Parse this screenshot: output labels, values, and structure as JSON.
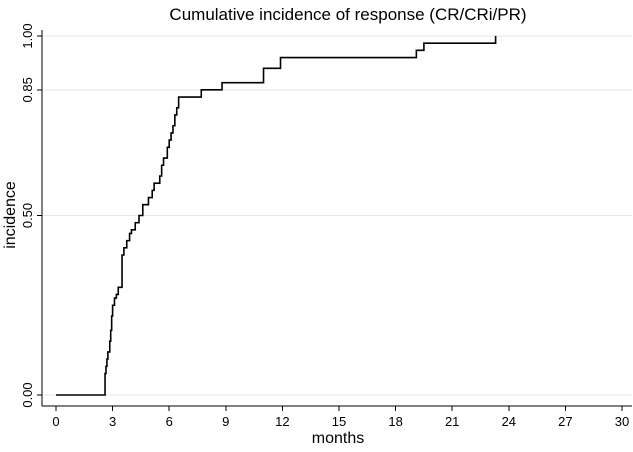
{
  "chart_data": {
    "type": "line",
    "step": true,
    "title": "Cumulative incidence of response (CR/CRi/PR)",
    "xlabel": "months",
    "ylabel": "incidence",
    "xlim": [
      0,
      30
    ],
    "ylim": [
      0,
      1
    ],
    "x_ticks": [
      0,
      3,
      6,
      9,
      12,
      15,
      18,
      21,
      24,
      27,
      30
    ],
    "x_tick_labels": [
      "0",
      "3",
      "6",
      "9",
      "12",
      "15",
      "18",
      "21",
      "24",
      "27",
      "30"
    ],
    "y_ticks": [
      0,
      0.5,
      0.85,
      1.0
    ],
    "y_tick_labels": [
      "0.00",
      "0.50",
      "0.85",
      "1.00"
    ],
    "grid": true,
    "legend": "none",
    "line_color": "#000000",
    "series": [
      {
        "x": [
          0,
          2.6,
          2.65,
          2.7,
          2.75,
          2.85,
          2.9,
          2.95,
          3.0,
          3.1,
          3.2,
          3.3,
          3.5,
          3.6,
          3.75,
          3.9,
          4.0,
          4.2,
          4.4,
          4.6,
          4.9,
          5.1,
          5.2,
          5.5,
          5.6,
          5.7,
          5.9,
          6.0,
          6.1,
          6.2,
          6.3,
          6.4,
          6.5,
          7.7,
          8.8,
          11.0,
          11.9,
          19.1,
          19.5,
          23.3
        ],
        "y": [
          0,
          0.06,
          0.08,
          0.1,
          0.12,
          0.15,
          0.18,
          0.22,
          0.25,
          0.27,
          0.28,
          0.3,
          0.39,
          0.41,
          0.43,
          0.45,
          0.46,
          0.48,
          0.5,
          0.53,
          0.55,
          0.57,
          0.59,
          0.61,
          0.64,
          0.66,
          0.69,
          0.71,
          0.73,
          0.75,
          0.78,
          0.8,
          0.83,
          0.85,
          0.87,
          0.91,
          0.94,
          0.96,
          0.98,
          1.0
        ]
      }
    ]
  }
}
